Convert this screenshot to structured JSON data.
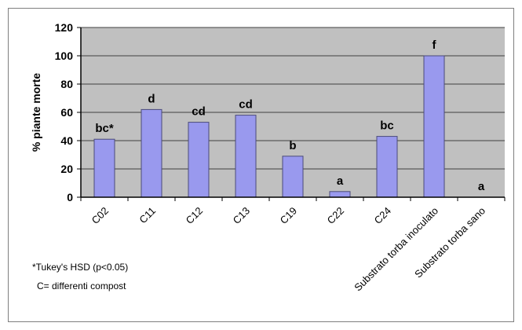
{
  "chart_data": {
    "type": "bar",
    "categories": [
      "C02",
      "C11",
      "C12",
      "C13",
      "C19",
      "C22",
      "C24",
      "Substrato torba inoculato",
      "Substrato torba sano"
    ],
    "values": [
      41,
      62,
      53,
      58,
      29,
      4,
      43,
      100,
      0
    ],
    "bar_labels": [
      "bc*",
      "d",
      "cd",
      "cd",
      "b",
      "a",
      "bc",
      "f",
      "a"
    ],
    "ylabel": "% piante morte",
    "yticks": [
      0,
      20,
      40,
      60,
      80,
      100,
      120
    ],
    "ylim": [
      0,
      120
    ],
    "grid": true,
    "colors": {
      "bar_fill": "#9999ee",
      "bar_stroke": "#4a4a7a",
      "plot_bg": "#c0c0c0",
      "grid": "#404040"
    }
  },
  "notes": {
    "line1": "*Tukey's HSD (p<0.05)",
    "line2": "C= differenti compost"
  }
}
